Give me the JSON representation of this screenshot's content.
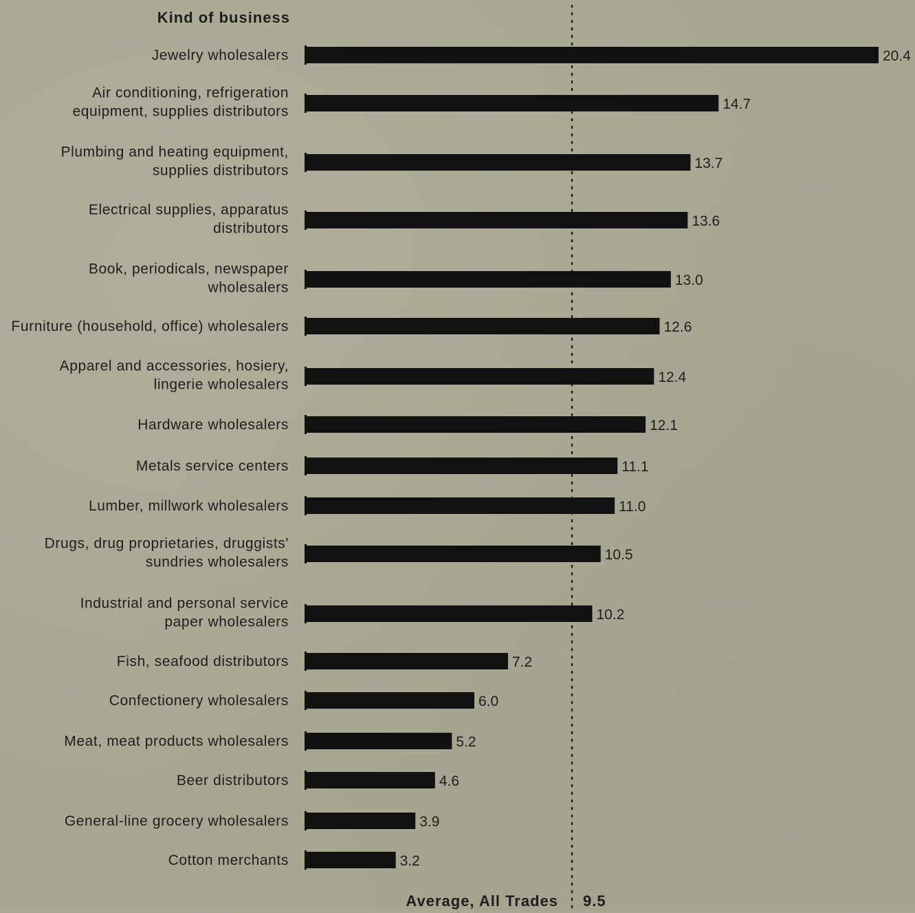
{
  "header": "Kind of business",
  "chart_data": {
    "type": "bar",
    "orientation": "horizontal",
    "categories": [
      [
        "Jewelry wholesalers"
      ],
      [
        "Air conditioning, refrigeration",
        "equipment, supplies distributors"
      ],
      [
        "Plumbing and heating equipment,",
        "supplies distributors"
      ],
      [
        "Electrical supplies, apparatus",
        "distributors"
      ],
      [
        "Book, periodicals, newspaper",
        "wholesalers"
      ],
      [
        "Furniture (household, office) wholesalers"
      ],
      [
        "Apparel and accessories, hosiery,",
        "lingerie wholesalers"
      ],
      [
        "Hardware wholesalers"
      ],
      [
        "Metals service centers"
      ],
      [
        "Lumber, millwork wholesalers"
      ],
      [
        "Drugs, drug proprietaries, druggists'",
        "sundries wholesalers"
      ],
      [
        "Industrial and personal service",
        "paper wholesalers"
      ],
      [
        "Fish, seafood distributors"
      ],
      [
        "Confectionery wholesalers"
      ],
      [
        "Meat, meat products wholesalers"
      ],
      [
        "Beer distributors"
      ],
      [
        "General-line grocery wholesalers"
      ],
      [
        "Cotton merchants"
      ]
    ],
    "values": [
      20.4,
      14.7,
      13.7,
      13.6,
      13.0,
      12.6,
      12.4,
      12.1,
      11.1,
      11.0,
      10.5,
      10.2,
      7.2,
      6.0,
      5.2,
      4.6,
      3.9,
      3.2
    ],
    "value_labels": [
      "20.4",
      "14.7",
      "13.7",
      "13.6",
      "13.0",
      "12.6",
      "12.4",
      "12.1",
      "11.1",
      "11.0",
      "10.5",
      "10.2",
      "7.2",
      "6.0",
      "5.2",
      "4.6",
      "3.9",
      "3.2"
    ],
    "average": {
      "label": "Average, All Trades",
      "value": 9.5,
      "value_label": "9.5"
    },
    "xlim": [
      0,
      20.4
    ],
    "grid": false,
    "bar_color": "#111111"
  }
}
